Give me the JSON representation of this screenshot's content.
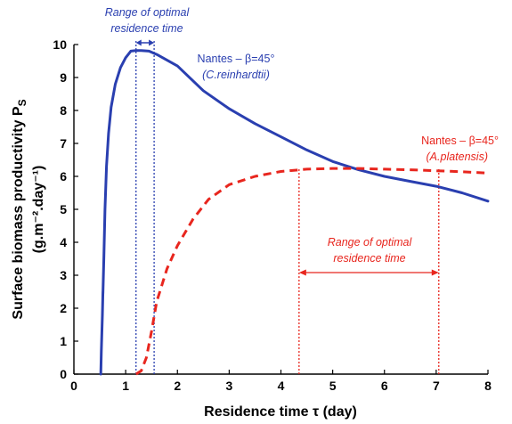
{
  "chart_data": {
    "type": "line",
    "xlabel": "Residence time τ (day)",
    "ylabel_line1": "Surface biomass productivity P",
    "ylabel_sub": "S",
    "ylabel_line2": "(g.m⁻².day⁻¹)",
    "xlim": [
      0,
      8
    ],
    "ylim": [
      0,
      10
    ],
    "xticks": [
      0,
      1,
      2,
      3,
      4,
      5,
      6,
      7,
      8
    ],
    "yticks": [
      0,
      1,
      2,
      3,
      4,
      5,
      6,
      7,
      8,
      9,
      10
    ],
    "grid": false,
    "series": [
      {
        "name": "Nantes – β=45° (C.reinhardtii)",
        "style": "solid",
        "color": "#2a3fb0",
        "x": [
          0.52,
          0.53,
          0.55,
          0.56,
          0.56,
          0.58,
          0.6,
          0.63,
          0.67,
          0.72,
          0.8,
          0.9,
          1.0,
          1.1,
          1.2,
          1.3,
          1.45,
          1.6,
          2.0,
          2.5,
          3.0,
          3.5,
          4.0,
          4.5,
          5.0,
          5.5,
          6.0,
          6.5,
          7.0,
          7.5,
          8.0
        ],
        "y": [
          0.0,
          0.7,
          1.8,
          2.5,
          2.45,
          3.6,
          5.0,
          6.3,
          7.3,
          8.1,
          8.8,
          9.3,
          9.6,
          9.8,
          9.82,
          9.82,
          9.8,
          9.7,
          9.35,
          8.6,
          8.05,
          7.6,
          7.2,
          6.8,
          6.45,
          6.2,
          6.0,
          5.85,
          5.7,
          5.5,
          5.25
        ]
      },
      {
        "name": "Nantes – β=45° (A.platensis)",
        "style": "dashed",
        "color": "#e8261e",
        "x": [
          1.2,
          1.3,
          1.4,
          1.5,
          1.6,
          1.8,
          2.0,
          2.3,
          2.6,
          3.0,
          3.5,
          4.0,
          4.5,
          5.0,
          5.5,
          6.0,
          6.5,
          7.0,
          7.5,
          8.0
        ],
        "y": [
          0.0,
          0.1,
          0.5,
          1.3,
          2.2,
          3.2,
          3.9,
          4.7,
          5.3,
          5.75,
          6.0,
          6.15,
          6.22,
          6.24,
          6.24,
          6.22,
          6.2,
          6.17,
          6.14,
          6.1
        ]
      }
    ],
    "annotations": {
      "blue_range_line1": "Range of optimal",
      "blue_range_line2": "residence time",
      "blue_range_x": [
        1.2,
        1.55
      ],
      "blue_label_line1": "Nantes – β=45°",
      "blue_label_line2": "(C.reinhardtii)",
      "red_label_line1": "Nantes – β=45°",
      "red_label_line2": "(A.platensis)",
      "red_range_line1": "Range of optimal",
      "red_range_line2": "residence time",
      "red_range_x": [
        4.35,
        7.05
      ]
    }
  }
}
